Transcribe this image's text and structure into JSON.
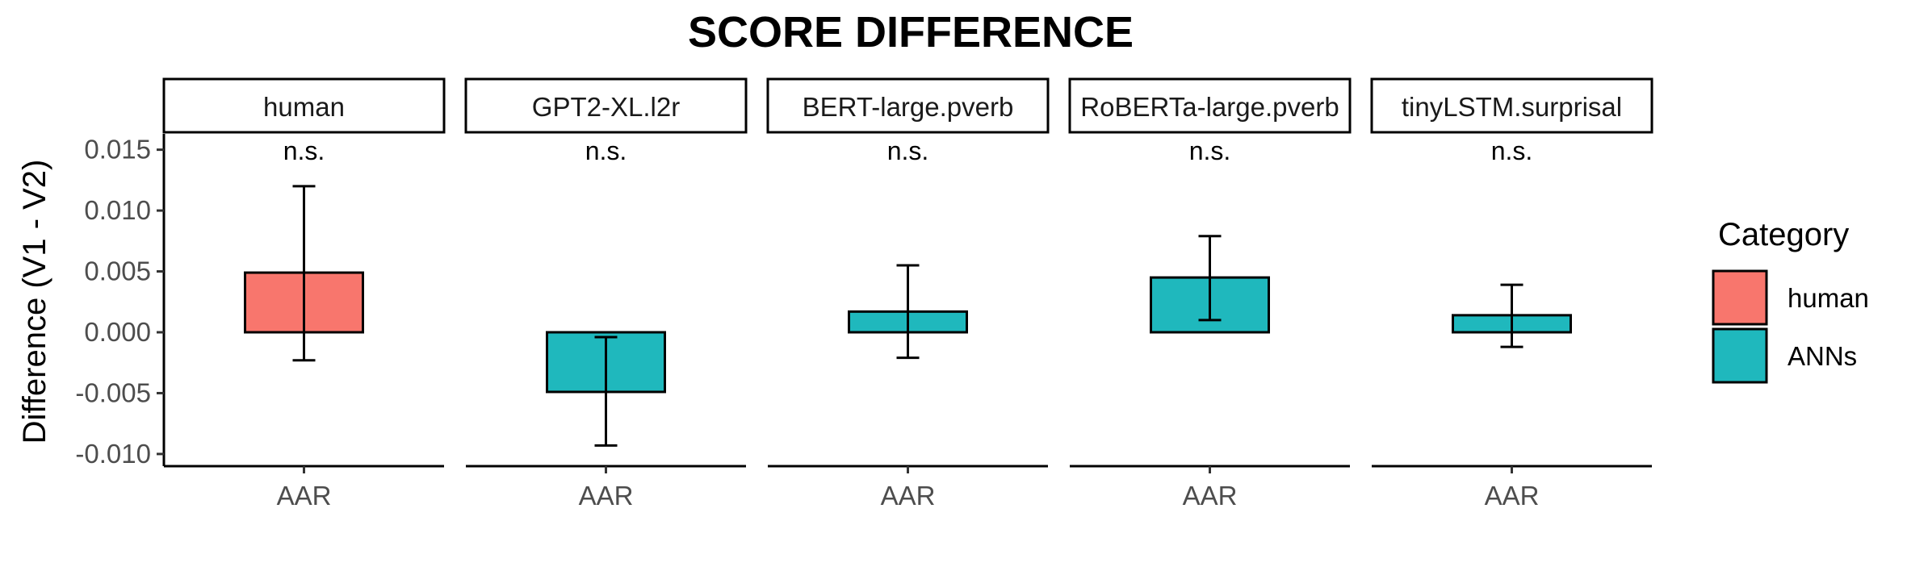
{
  "chart_data": {
    "type": "bar",
    "title": "SCORE DIFFERENCE",
    "ylabel": "Difference (V1 - V2)",
    "xlabel": "",
    "ylim": [
      -0.011,
      0.0163
    ],
    "yticks": [
      -0.01,
      -0.005,
      0.0,
      0.005,
      0.01,
      0.015
    ],
    "ytick_labels": [
      "-0.010",
      "-0.005",
      "0.000",
      "0.005",
      "0.010",
      "0.015"
    ],
    "grid": false,
    "legend": {
      "title": "Category",
      "position": "right",
      "entries": [
        {
          "label": "human",
          "color": "#F8766D"
        },
        {
          "label": "ANNs",
          "color": "#1FB8BD"
        }
      ]
    },
    "facets": [
      {
        "panel": "human",
        "category": "AAR",
        "group": "human",
        "value": 0.0049,
        "ci_low": -0.0023,
        "ci_high": 0.012,
        "significance": "n.s."
      },
      {
        "panel": "GPT2-XL.l2r",
        "category": "AAR",
        "group": "ANNs",
        "value": -0.0049,
        "ci_low": -0.0093,
        "ci_high": -0.0004,
        "significance": "n.s."
      },
      {
        "panel": "BERT-large.pverb",
        "category": "AAR",
        "group": "ANNs",
        "value": 0.0017,
        "ci_low": -0.0021,
        "ci_high": 0.0055,
        "significance": "n.s."
      },
      {
        "panel": "RoBERTa-large.pverb",
        "category": "AAR",
        "group": "ANNs",
        "value": 0.0045,
        "ci_low": 0.001,
        "ci_high": 0.0079,
        "significance": "n.s."
      },
      {
        "panel": "tinyLSTM.surprisal",
        "category": "AAR",
        "group": "ANNs",
        "value": 0.0014,
        "ci_low": -0.0012,
        "ci_high": 0.0039,
        "significance": "n.s."
      }
    ]
  }
}
